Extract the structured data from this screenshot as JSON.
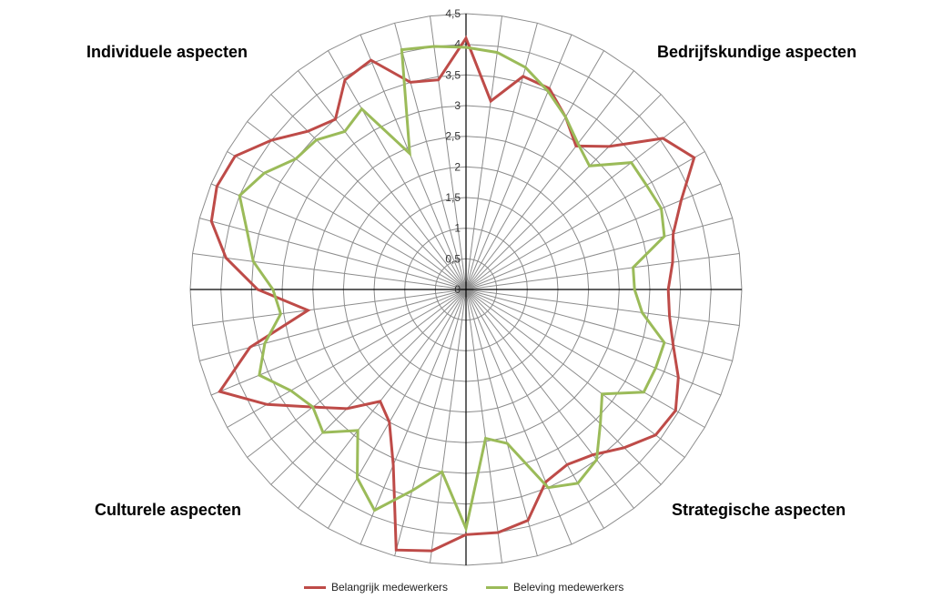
{
  "chart_data": {
    "type": "radar",
    "title": "",
    "r_max": 4.5,
    "r_ticks": [
      "0",
      "0,5",
      "1",
      "1,5",
      "2",
      "2,5",
      "3",
      "3,5",
      "4",
      "4,5"
    ],
    "spokes": 48,
    "quadrant_labels": [
      "Individuele aspecten",
      "Bedrijfskundige aspecten",
      "Strategische aspecten",
      "Culturele aspecten"
    ],
    "series": [
      {
        "name": "Belangrijk medewerkers",
        "color": "#be4b48",
        "values": [
          4.1,
          3.1,
          3.6,
          3.55,
          3.25,
          2.95,
          3.3,
          4.05,
          4.3,
          3.8,
          3.5,
          3.4,
          3.3,
          3.35,
          3.5,
          3.75,
          3.95,
          3.9,
          3.65,
          3.4,
          3.3,
          3.4,
          3.9,
          4.0,
          4.0,
          4.3,
          4.4,
          3.1,
          2.5,
          2.3,
          2.75,
          3.15,
          3.75,
          4.35,
          3.65,
          2.6,
          3.4,
          3.95,
          4.3,
          4.4,
          4.35,
          4.0,
          3.65,
          3.5,
          3.95,
          4.05,
          3.5,
          3.45
        ]
      },
      {
        "name": "Beleving medewerkers",
        "color": "#9bbb59",
        "values": [
          3.95,
          3.9,
          3.75,
          3.5,
          3.25,
          3.0,
          2.85,
          3.4,
          3.4,
          3.45,
          3.35,
          2.75,
          2.75,
          2.9,
          3.35,
          3.35,
          3.35,
          2.8,
          3.1,
          3.5,
          3.65,
          3.5,
          2.6,
          2.45,
          3.9,
          3.0,
          3.4,
          3.9,
          3.55,
          2.9,
          3.3,
          3.15,
          3.3,
          3.65,
          3.4,
          3.05,
          3.15,
          3.5,
          3.7,
          4.0,
          3.8,
          3.5,
          3.45,
          3.25,
          3.4,
          2.4,
          4.05,
          4.0
        ]
      }
    ],
    "legend": "bottom"
  }
}
